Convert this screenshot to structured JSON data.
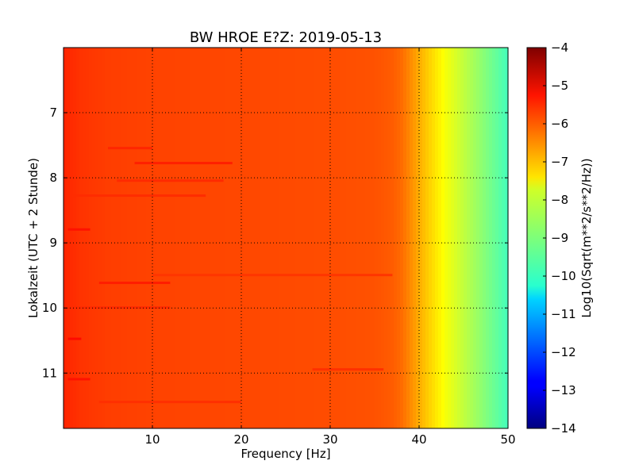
{
  "chart_data": {
    "type": "heatmap",
    "title": "BW HROE E?Z: 2019-05-13",
    "xlabel": "Frequency [Hz]",
    "ylabel": "Lokalzeit (UTC + 2 Stunde)",
    "xlim": [
      0,
      50
    ],
    "ylim": [
      6.0,
      11.85
    ],
    "y_inverted": true,
    "x_ticks": [
      10,
      20,
      30,
      40,
      50
    ],
    "y_ticks": [
      7,
      8,
      9,
      10,
      11
    ],
    "grid": true,
    "colormap": "jet",
    "colorbar": {
      "label": "Log10(Sqrt(m**2/s**2/Hz))",
      "vmin": -14,
      "vmax": -4,
      "ticks": [
        -4,
        -5,
        -6,
        -7,
        -8,
        -9,
        -10,
        -11,
        -12,
        -13,
        -14
      ]
    },
    "frequency_profile": {
      "frequency_hz": [
        0,
        2,
        5,
        10,
        20,
        30,
        35,
        37,
        38,
        39,
        40,
        41,
        42,
        43,
        44,
        45,
        46,
        47,
        48,
        49,
        50
      ],
      "log10_amplitude": [
        -5.6,
        -5.75,
        -5.85,
        -5.9,
        -5.95,
        -6.0,
        -6.05,
        -6.15,
        -6.3,
        -6.6,
        -6.95,
        -7.25,
        -7.55,
        -7.85,
        -8.1,
        -8.35,
        -8.6,
        -8.85,
        -9.1,
        -9.35,
        -9.6
      ]
    },
    "horizontal_streaks": [
      {
        "time": 7.55,
        "f_start": 5,
        "f_end": 10,
        "delta": 0.25
      },
      {
        "time": 7.78,
        "f_start": 8,
        "f_end": 19,
        "delta": 0.35
      },
      {
        "time": 8.05,
        "f_start": 6,
        "f_end": 18,
        "delta": 0.25
      },
      {
        "time": 8.28,
        "f_start": 1,
        "f_end": 16,
        "delta": 0.2
      },
      {
        "time": 8.8,
        "f_start": 0.5,
        "f_end": 3,
        "delta": 0.3
      },
      {
        "time": 9.5,
        "f_start": 10,
        "f_end": 37,
        "delta": 0.2
      },
      {
        "time": 9.62,
        "f_start": 4,
        "f_end": 12,
        "delta": 0.35
      },
      {
        "time": 10.0,
        "f_start": 1,
        "f_end": 12,
        "delta": 0.2
      },
      {
        "time": 10.48,
        "f_start": 0.5,
        "f_end": 2,
        "delta": 0.35
      },
      {
        "time": 10.95,
        "f_start": 28,
        "f_end": 36,
        "delta": 0.3
      },
      {
        "time": 11.1,
        "f_start": 0.5,
        "f_end": 3,
        "delta": 0.3
      },
      {
        "time": 11.45,
        "f_start": 4,
        "f_end": 20,
        "delta": 0.2
      }
    ]
  }
}
